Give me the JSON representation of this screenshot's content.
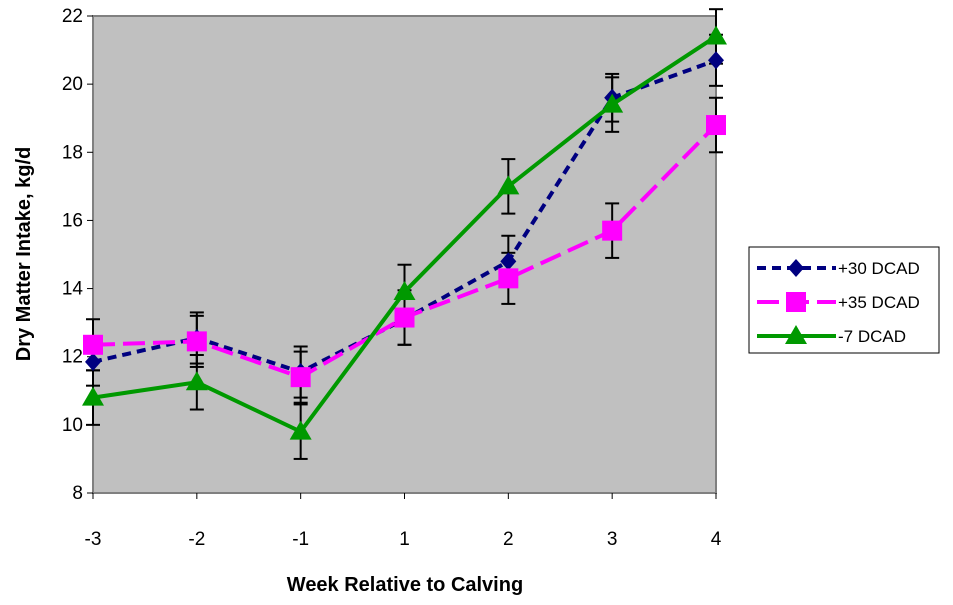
{
  "chart_data": {
    "type": "line",
    "title": "",
    "xlabel": "Week Relative to Calving",
    "ylabel": "Dry Matter Intake, kg/d",
    "categories": [
      "-3",
      "-2",
      "-1",
      "1",
      "2",
      "3",
      "4"
    ],
    "ylim": [
      8,
      22
    ],
    "yticks": [
      "8",
      "10",
      "12",
      "14",
      "16",
      "18",
      "20",
      "22"
    ],
    "grid": false,
    "legend_position": "right",
    "plot_background": "#c0c0c0",
    "series": [
      {
        "name": "+30 DCAD",
        "values": [
          11.85,
          12.55,
          11.55,
          13.1,
          14.8,
          19.6,
          20.7
        ],
        "error": [
          0.7,
          0.75,
          0.75,
          0.75,
          0.75,
          0.7,
          0.75
        ],
        "color": "#000080",
        "marker": "diamond",
        "line": "short-dash"
      },
      {
        "name": "+35 DCAD",
        "values": [
          12.35,
          12.45,
          11.4,
          13.15,
          14.3,
          15.7,
          18.8
        ],
        "error": [
          0.75,
          0.75,
          0.75,
          0.8,
          0.75,
          0.8,
          0.8
        ],
        "color": "#ff00ff",
        "marker": "square",
        "line": "long-dash"
      },
      {
        "name": "-7 DCAD",
        "values": [
          10.8,
          11.25,
          9.8,
          13.9,
          17.0,
          19.4,
          21.4
        ],
        "error": [
          0.8,
          0.8,
          0.8,
          0.8,
          0.8,
          0.8,
          0.8
        ],
        "color": "#009900",
        "marker": "triangle",
        "line": "solid"
      }
    ]
  }
}
